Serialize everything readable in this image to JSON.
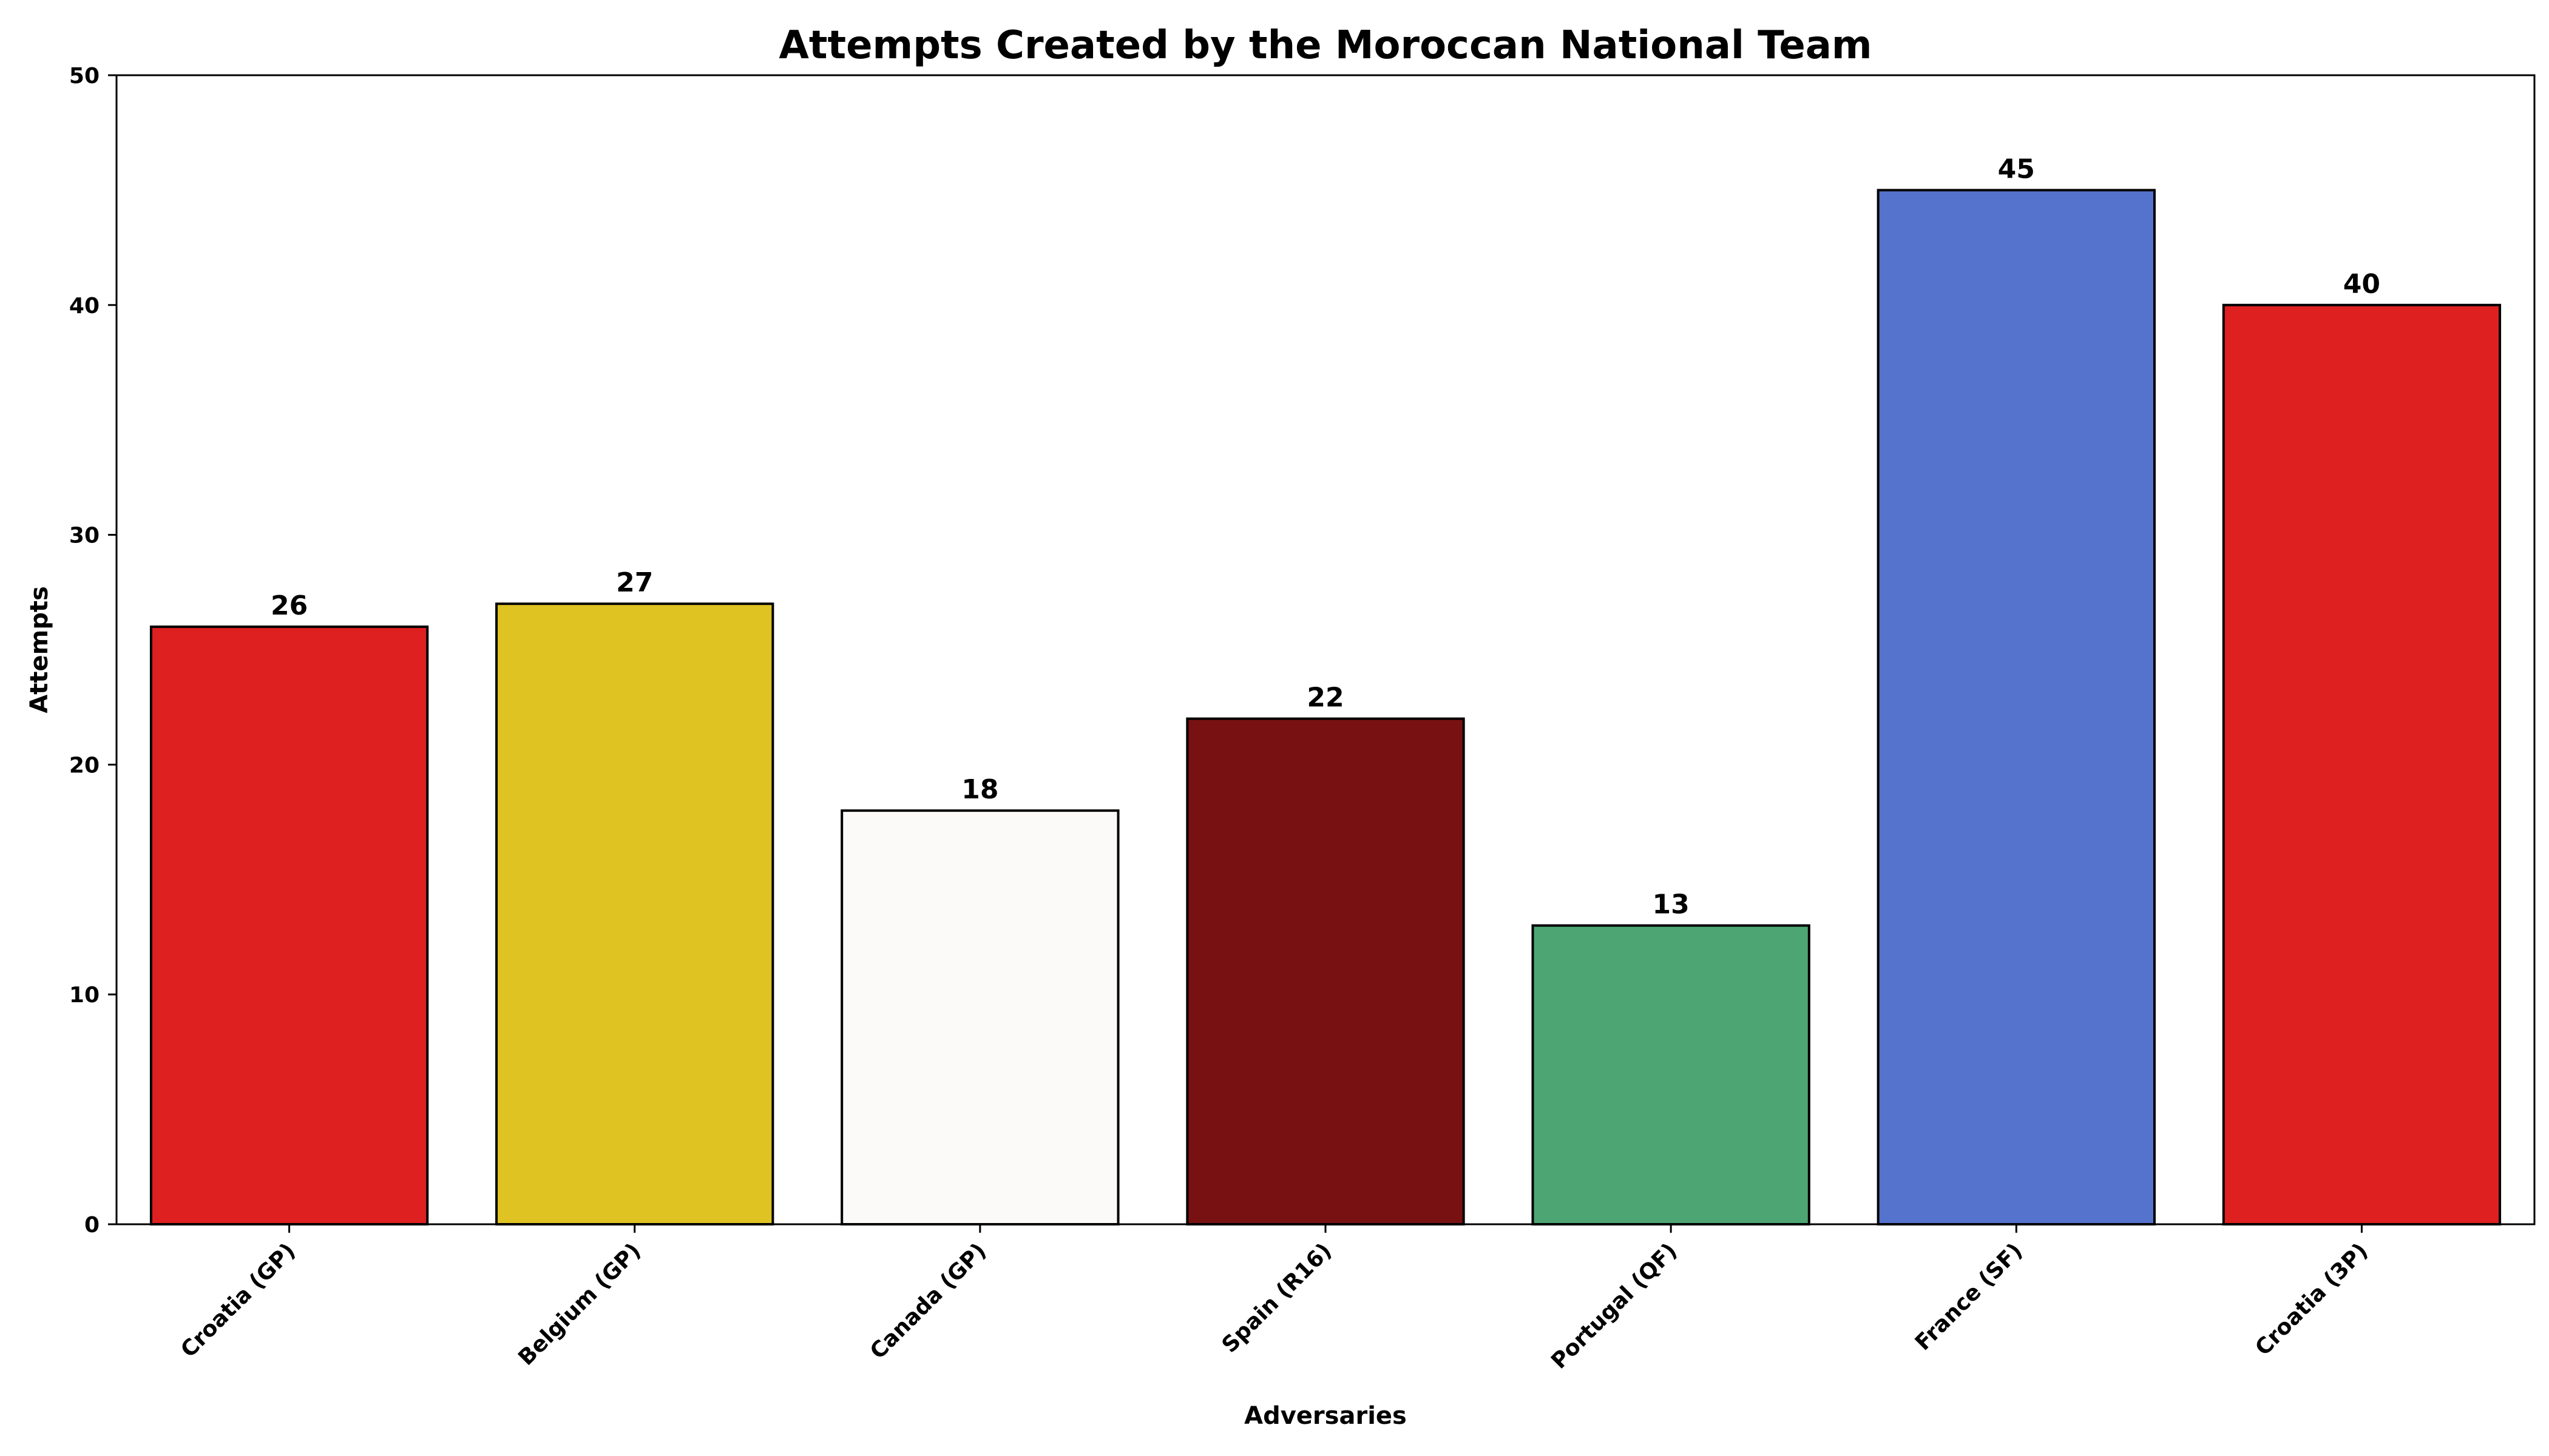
{
  "chart_data": {
    "type": "bar",
    "title": "Attempts Created by the Moroccan National Team",
    "xlabel": "Adversaries",
    "ylabel": "Attempts",
    "categories": [
      "Croatia (GP)",
      "Belgium (GP)",
      "Canada (GP)",
      "Spain (R16)",
      "Portugal (QF)",
      "France (SF)",
      "Croatia (3P)"
    ],
    "values": [
      26,
      27,
      18,
      22,
      13,
      45,
      40
    ],
    "data_labels": [
      "26",
      "27",
      "18",
      "22",
      "13",
      "45",
      "40"
    ],
    "bar_colors": [
      "#de2021",
      "#dfc322",
      "#fbfaf8",
      "#781212",
      "#4ea574",
      "#5573cc",
      "#de2021"
    ],
    "ylim": [
      0,
      50
    ],
    "y_ticks": [
      0,
      10,
      20,
      30,
      40,
      50
    ],
    "y_tick_labels": [
      "0",
      "10",
      "20",
      "30",
      "40",
      "50"
    ],
    "grid": false,
    "legend": "none"
  }
}
